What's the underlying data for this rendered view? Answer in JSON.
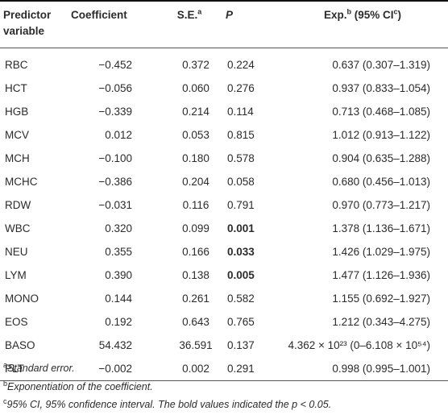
{
  "table": {
    "headers": {
      "predictor_line1": "Predictor",
      "predictor_line2": "variable",
      "coefficient": "Coefficient",
      "se": "S.E.",
      "se_sup": "a",
      "p": "P",
      "exp_pre": "Exp.",
      "exp_sup": "b",
      "exp_mid": " (95% CI",
      "exp_sup2": "c",
      "exp_post": ")"
    },
    "rows": [
      {
        "predictor": "RBC",
        "coefficient": "−0.452",
        "se": "0.372",
        "p": "0.224",
        "exp": "0.637 (0.307–1.319)"
      },
      {
        "predictor": "HCT",
        "coefficient": "−0.056",
        "se": "0.060",
        "p": "0.276",
        "exp": "0.937 (0.833–1.054)"
      },
      {
        "predictor": "HGB",
        "coefficient": "−0.339",
        "se": "0.214",
        "p": "0.114",
        "exp": "0.713 (0.468–1.085)"
      },
      {
        "predictor": "MCV",
        "coefficient": "0.012",
        "se": "0.053",
        "p": "0.815",
        "exp": "1.012 (0.913–1.122)"
      },
      {
        "predictor": "MCH",
        "coefficient": "−0.100",
        "se": "0.180",
        "p": "0.578",
        "exp": "0.904 (0.635–1.288)"
      },
      {
        "predictor": "MCHC",
        "coefficient": "−0.386",
        "se": "0.204",
        "p": "0.058",
        "exp": "0.680 (0.456–1.013)"
      },
      {
        "predictor": "RDW",
        "coefficient": "−0.031",
        "se": "0.116",
        "p": "0.791",
        "exp": "0.970 (0.773–1.217)"
      },
      {
        "predictor": "WBC",
        "coefficient": "0.320",
        "se": "0.099",
        "p": "0.001",
        "p_bold": true,
        "exp": "1.378 (1.136–1.671)"
      },
      {
        "predictor": "NEU",
        "coefficient": "0.355",
        "se": "0.166",
        "p": "0.033",
        "p_bold": true,
        "exp": "1.426 (1.029–1.975)"
      },
      {
        "predictor": "LYM",
        "coefficient": "0.390",
        "se": "0.138",
        "p": "0.005",
        "p_bold": true,
        "exp": "1.477 (1.126–1.936)"
      },
      {
        "predictor": "MONO",
        "coefficient": "0.144",
        "se": "0.261",
        "p": "0.582",
        "exp": "1.155 (0.692–1.927)"
      },
      {
        "predictor": "EOS",
        "coefficient": "0.192",
        "se": "0.643",
        "p": "0.765",
        "exp": "1.212 (0.343–4.275)"
      },
      {
        "predictor": "BASO",
        "coefficient": "54.432",
        "se": "36.591",
        "p": "0.137",
        "exp": "4.362 × 10²³ (0–6.108 × 10⁵⁴)"
      },
      {
        "predictor": "PLT",
        "coefficient": "−0.002",
        "se": "0.002",
        "p": "0.291",
        "exp": "0.998 (0.995–1.001)"
      }
    ]
  },
  "footnotes": [
    {
      "mark": "a",
      "text": "Standard error."
    },
    {
      "mark": "b",
      "text": "Exponentiation of the coefficient."
    },
    {
      "mark": "c",
      "text": "95% CI, 95% confidence interval. The bold values indicated the p < 0.05."
    }
  ]
}
